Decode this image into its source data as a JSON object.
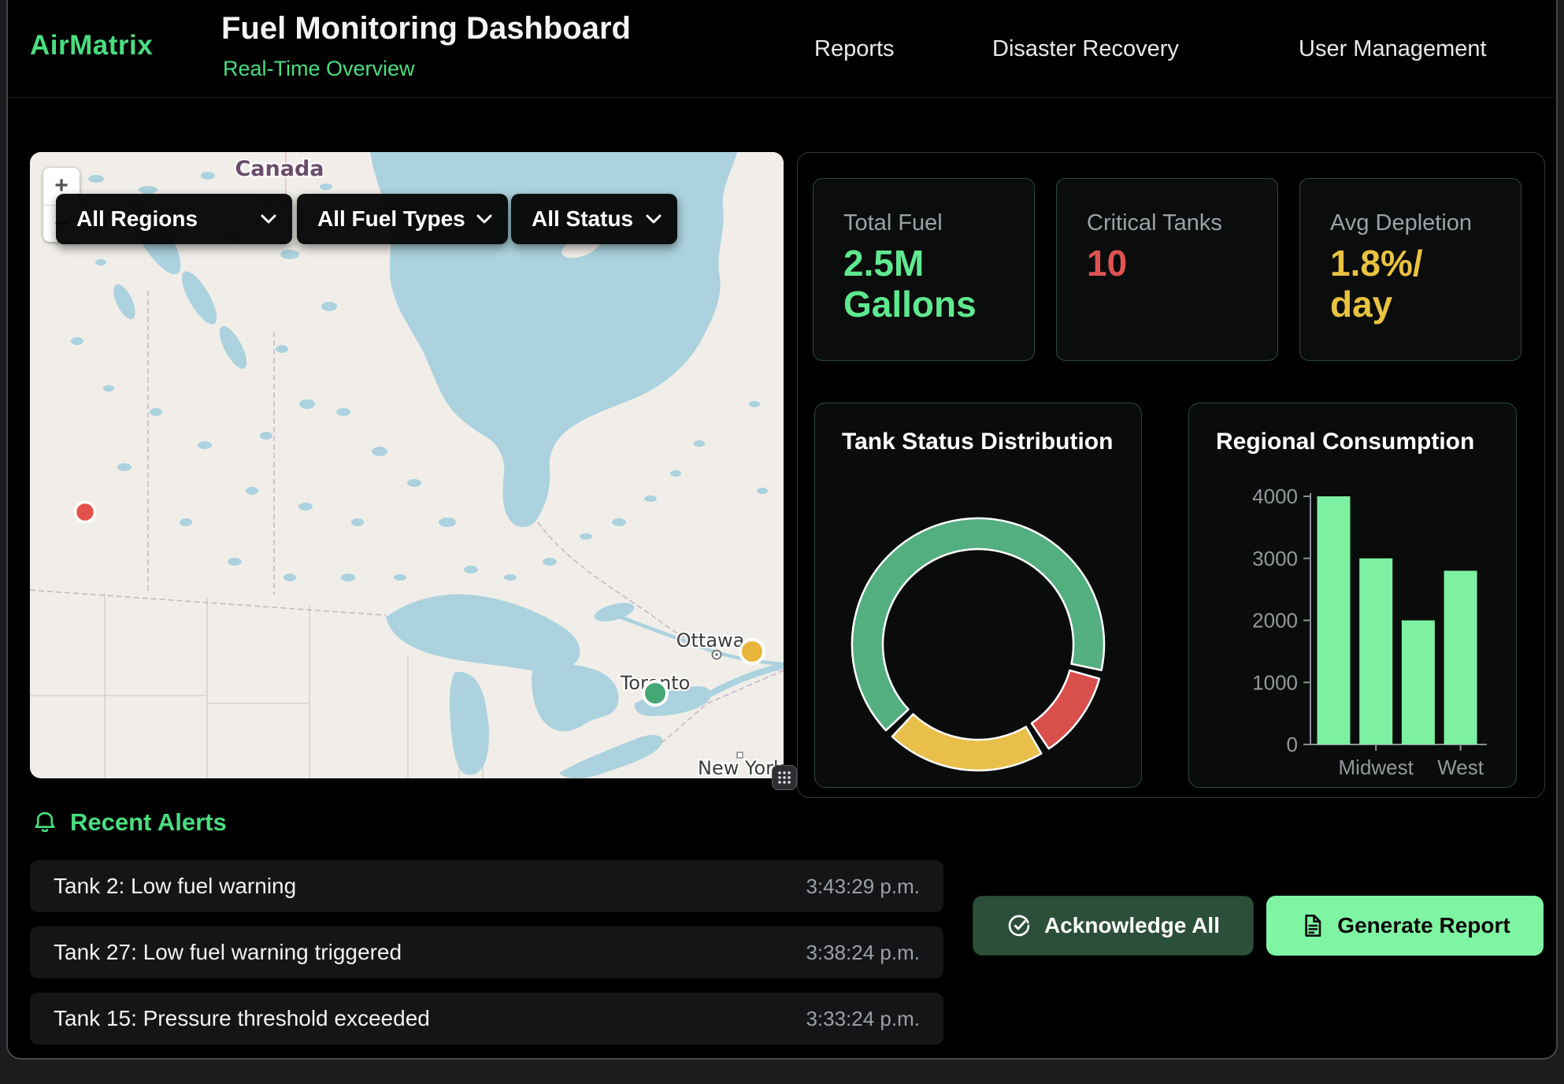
{
  "header": {
    "brand": "AirMatrix",
    "title": "Fuel Monitoring Dashboard",
    "subtitle": "Real-Time Overview",
    "nav": [
      {
        "label": "Reports"
      },
      {
        "label": "Disaster Recovery"
      },
      {
        "label": "User Management"
      }
    ]
  },
  "map": {
    "country_label": "Canada",
    "city_labels": [
      "Ottawa",
      "Toronto",
      "New York"
    ],
    "filters": [
      "All Regions",
      "All Fuel Types",
      "All Status"
    ],
    "zoom_in_label": "+",
    "zoom_out_label": "−",
    "markers": [
      {
        "near": "Ottawa",
        "color": "#e9b63c"
      },
      {
        "near": "Toronto",
        "color": "#43a874"
      },
      {
        "near": "west",
        "color": "#e2514b"
      }
    ]
  },
  "stats": [
    {
      "label": "Total Fuel",
      "value": "2.5M Gallons",
      "color": "#5fe98f"
    },
    {
      "label": "Critical Tanks",
      "value": "10",
      "color": "#e05252"
    },
    {
      "label": "Avg Depletion",
      "value": "1.8%/day",
      "color": "#e9c23f"
    }
  ],
  "chart_data": [
    {
      "type": "pie",
      "style": "doughnut",
      "title": "Tank Status Distribution",
      "rotation_deg": 225,
      "legend": "none",
      "segments": [
        {
          "percent": 65,
          "color": "#53ae80"
        },
        {
          "percent": 12,
          "color": "#d94f4c"
        },
        {
          "percent": 21,
          "color": "#e9bf4b"
        }
      ]
    },
    {
      "type": "bar",
      "title": "Regional Consumption",
      "values": [
        4000,
        3000,
        2000,
        2800
      ],
      "x_tick_labels": [
        "Midwest",
        "West"
      ],
      "x_tick_bar_indexes": [
        1,
        3
      ],
      "ylim": [
        0,
        4000
      ],
      "yticks": [
        0,
        1000,
        2000,
        3000,
        4000
      ],
      "bar_color": "#7ef0a1",
      "grid": false,
      "xlabel": "",
      "ylabel": ""
    }
  ],
  "alerts": {
    "title": "Recent Alerts",
    "items": [
      {
        "message": "Tank 2: Low fuel warning",
        "time": "3:43:29 p.m."
      },
      {
        "message": "Tank 27: Low fuel warning triggered",
        "time": "3:38:24 p.m."
      },
      {
        "message": "Tank 15: Pressure threshold exceeded",
        "time": "3:33:24 p.m."
      }
    ]
  },
  "actions": {
    "acknowledge_label": "Acknowledge All",
    "generate_label": "Generate Report"
  },
  "colors": {
    "accent_green": "#4ade80",
    "bright_green": "#7ff5a3",
    "alert_red": "#e05252",
    "warn_yellow": "#e9c23f",
    "map_water": "#abd2de",
    "map_land": "#f1eee9"
  }
}
